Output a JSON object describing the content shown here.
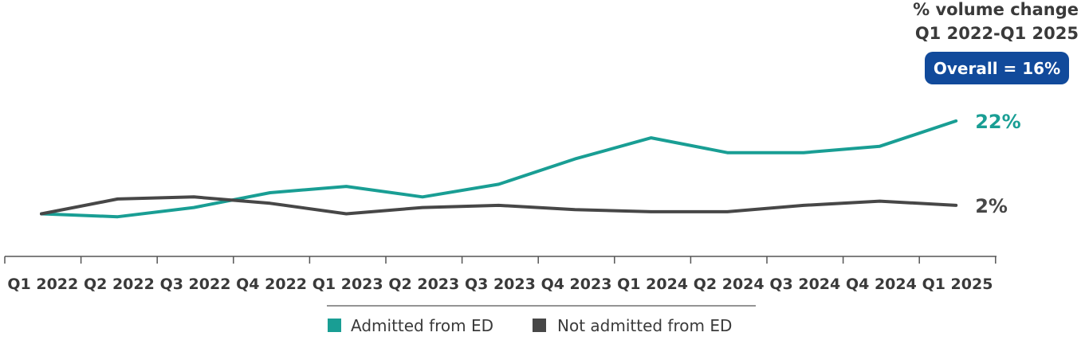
{
  "chart_data": {
    "type": "line",
    "categories": [
      "Q1 2022",
      "Q2 2022",
      "Q3 2022",
      "Q4 2022",
      "Q1 2023",
      "Q2 2023",
      "Q3 2023",
      "Q4 2023",
      "Q1 2024",
      "Q2 2024",
      "Q3 2024",
      "Q4 2024",
      "Q1 2025"
    ],
    "series": [
      {
        "name": "Admitted from ED",
        "color": "#199e94",
        "values": [
          100,
          99.3,
          101.5,
          105,
          106.5,
          104,
          107,
          113,
          118,
          114.5,
          114.5,
          116,
          122
        ],
        "end_label": "22%"
      },
      {
        "name": "Not admitted from ED",
        "color": "#474747",
        "values": [
          100,
          103.5,
          104,
          102.5,
          100,
          101.5,
          102,
          101,
          100.5,
          100.5,
          102,
          103,
          102
        ],
        "end_label": "2%"
      }
    ],
    "header": {
      "line1": "% volume change",
      "line2": "Q1 2022-Q1 2025",
      "badge": "Overall = 16%"
    },
    "badge_color": "#114a9b",
    "legend_placement": "bottom-center",
    "grid": false
  }
}
